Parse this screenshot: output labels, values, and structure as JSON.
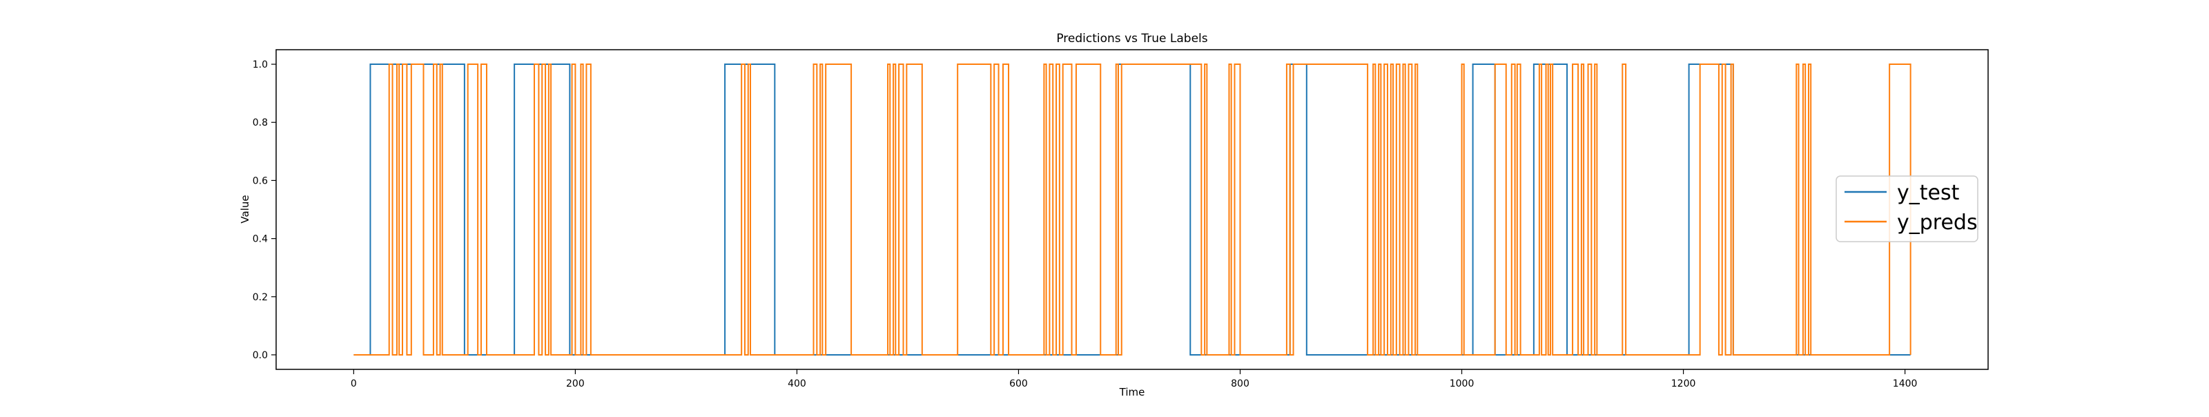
{
  "chart_data": {
    "type": "line",
    "title": "Predictions vs True Labels",
    "xlabel": "Time",
    "ylabel": "Value",
    "xlim": [
      -70,
      1475
    ],
    "ylim": [
      -0.05,
      1.05
    ],
    "xticks": [
      0,
      200,
      400,
      600,
      800,
      1000,
      1200,
      1400
    ],
    "yticks": [
      0.0,
      0.2,
      0.4,
      0.6,
      0.8,
      1.0
    ],
    "x_tick_labels": [
      "0",
      "200",
      "400",
      "600",
      "800",
      "1000",
      "1200",
      "1400"
    ],
    "y_tick_labels": [
      "0.0",
      "0.2",
      "0.4",
      "0.6",
      "0.8",
      "1.0"
    ],
    "grid": false,
    "legend": "center-right",
    "series": [
      {
        "name": "y_test",
        "color": "#1f77b4",
        "x_max": 1405,
        "one_intervals": [
          [
            15,
            100
          ],
          [
            145,
            195
          ],
          [
            335,
            380
          ],
          [
            690,
            755
          ],
          [
            845,
            860
          ],
          [
            1010,
            1030
          ],
          [
            1065,
            1095
          ],
          [
            1205,
            1245
          ]
        ]
      },
      {
        "name": "y_preds",
        "color": "#ff7f0e",
        "x_max": 1405,
        "one_intervals": [
          [
            32,
            35
          ],
          [
            39,
            41
          ],
          [
            44,
            48
          ],
          [
            52,
            63
          ],
          [
            72,
            75
          ],
          [
            78,
            80
          ],
          [
            103,
            112
          ],
          [
            115,
            120
          ],
          [
            163,
            167
          ],
          [
            170,
            173
          ],
          [
            176,
            178
          ],
          [
            197,
            200
          ],
          [
            205,
            207
          ],
          [
            210,
            214
          ],
          [
            350,
            353
          ],
          [
            356,
            358
          ],
          [
            415,
            418
          ],
          [
            421,
            423
          ],
          [
            426,
            449
          ],
          [
            482,
            484
          ],
          [
            487,
            489
          ],
          [
            492,
            496
          ],
          [
            499,
            513
          ],
          [
            545,
            575
          ],
          [
            578,
            582
          ],
          [
            586,
            591
          ],
          [
            623,
            625
          ],
          [
            628,
            631
          ],
          [
            634,
            637
          ],
          [
            640,
            648
          ],
          [
            652,
            674
          ],
          [
            688,
            690
          ],
          [
            693,
            765
          ],
          [
            768,
            770
          ],
          [
            790,
            792
          ],
          [
            795,
            800
          ],
          [
            842,
            845
          ],
          [
            848,
            915
          ],
          [
            920,
            922
          ],
          [
            925,
            927
          ],
          [
            930,
            933
          ],
          [
            936,
            938
          ],
          [
            941,
            944
          ],
          [
            947,
            949
          ],
          [
            952,
            955
          ],
          [
            958,
            960
          ],
          [
            1000,
            1002
          ],
          [
            1030,
            1040
          ],
          [
            1045,
            1048
          ],
          [
            1050,
            1053
          ],
          [
            1070,
            1072
          ],
          [
            1076,
            1078
          ],
          [
            1080,
            1082
          ],
          [
            1100,
            1105
          ],
          [
            1108,
            1110
          ],
          [
            1114,
            1117
          ],
          [
            1120,
            1122
          ],
          [
            1145,
            1148
          ],
          [
            1215,
            1232
          ],
          [
            1235,
            1238
          ],
          [
            1243,
            1245
          ],
          [
            1302,
            1304
          ],
          [
            1308,
            1310
          ],
          [
            1313,
            1315
          ],
          [
            1386,
            1405
          ]
        ]
      }
    ]
  }
}
